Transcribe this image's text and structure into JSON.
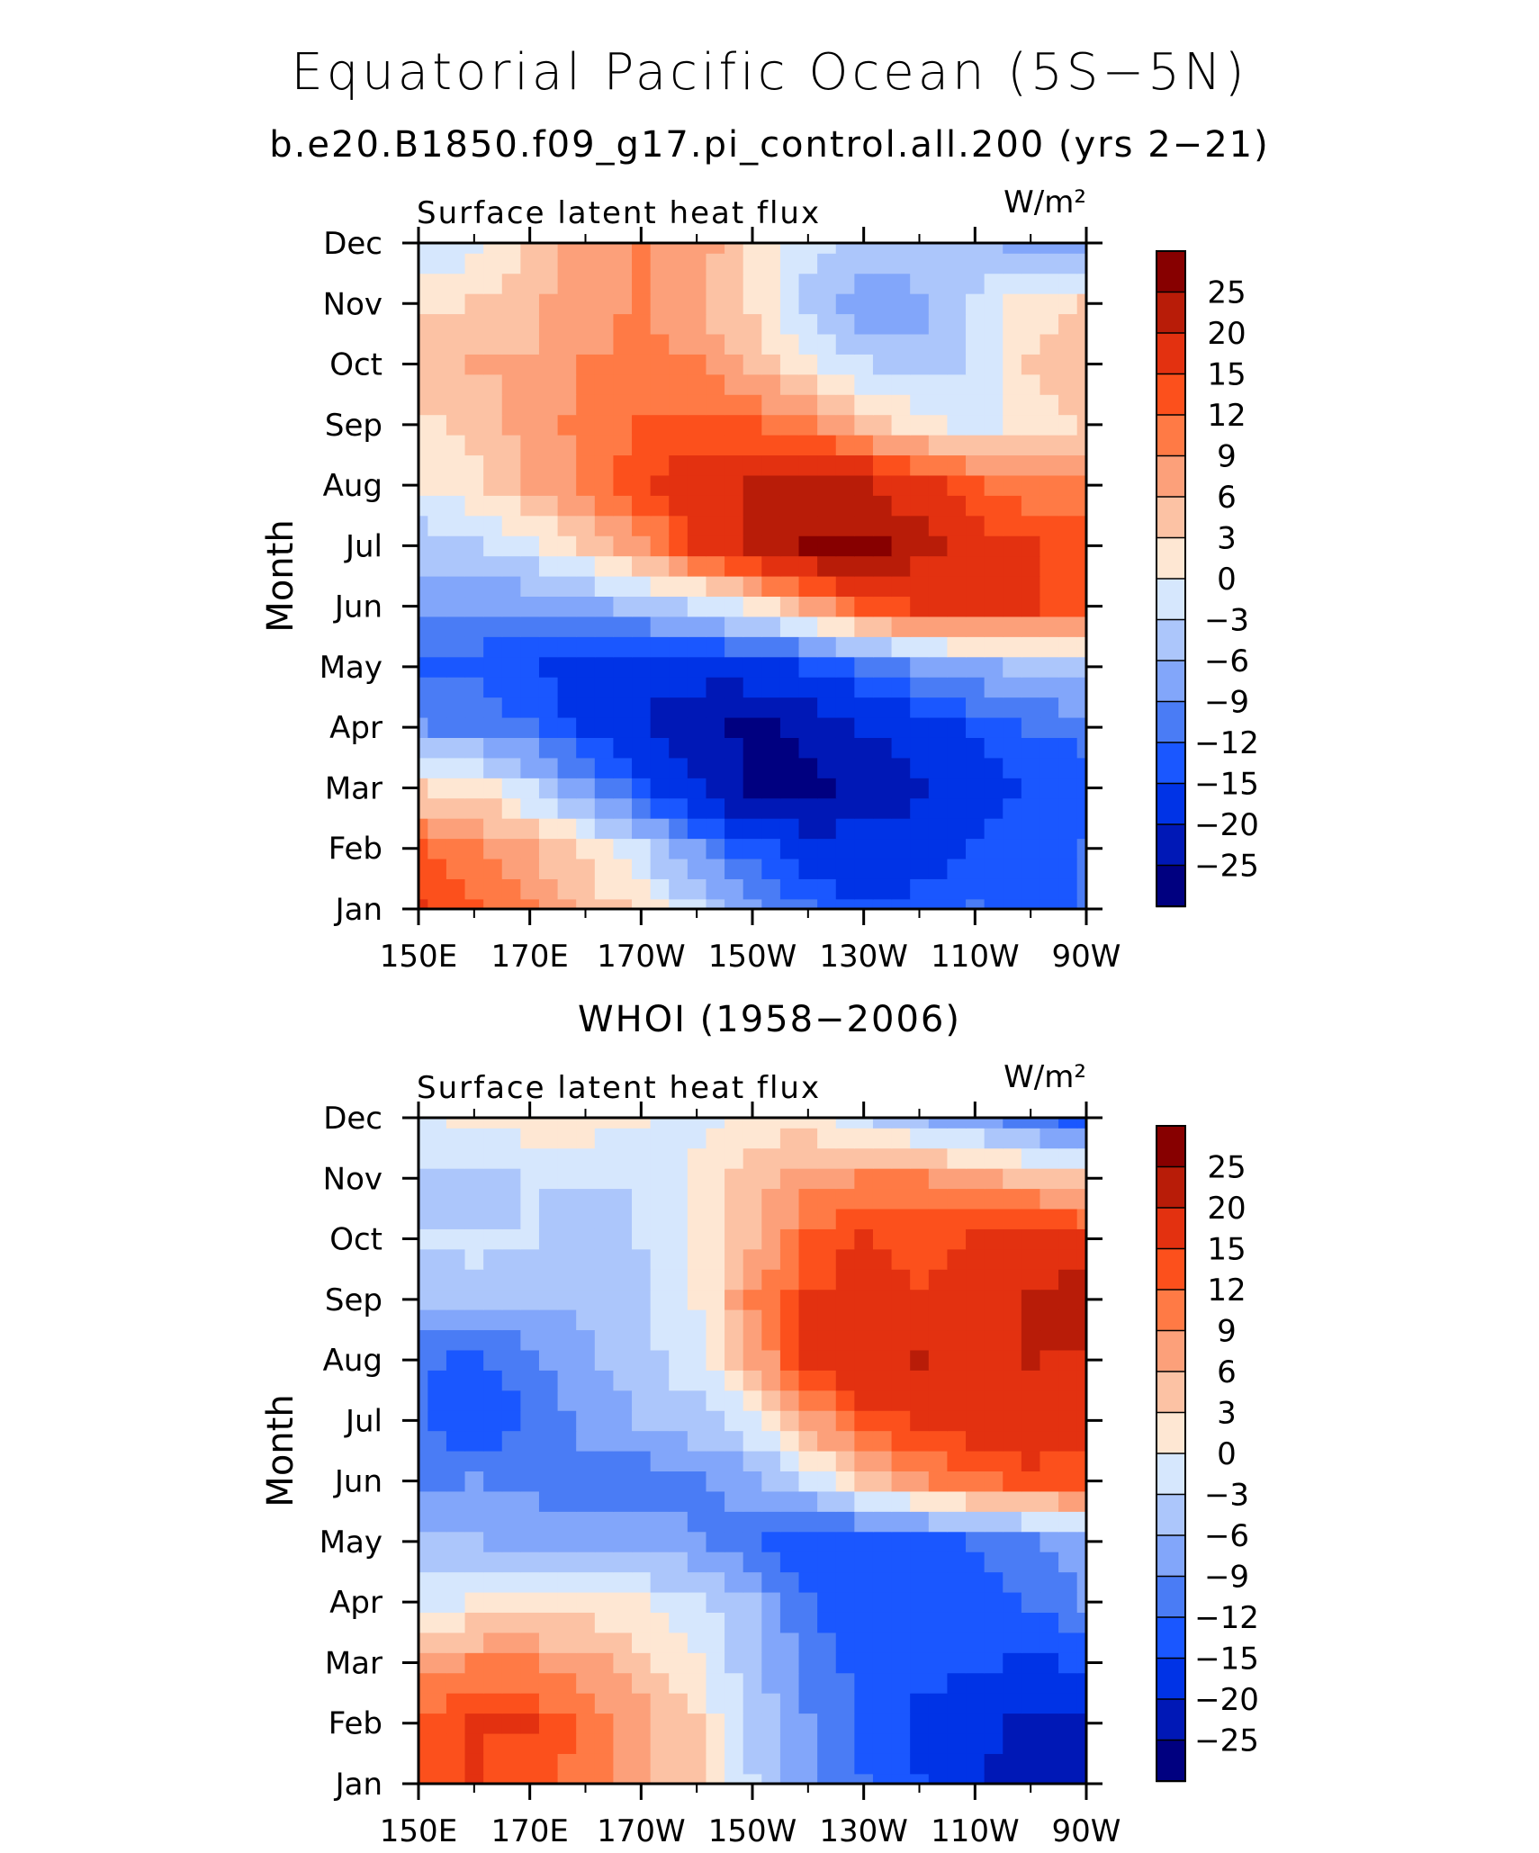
{
  "title": "Equatorial Pacific Ocean (5S−5N)",
  "subtitle": "b.e20.B1850.f09_g17.pi_control.all.200 (yrs 2−21)",
  "middle_title": "WHOI (1958−2006)",
  "colors": [
    "#000080",
    "#0018b6",
    "#0033e6",
    "#1a57ff",
    "#4a7cf5",
    "#82a6fa",
    "#acc6fb",
    "#d6e7fd",
    "#fee7d3",
    "#fcc2a4",
    "#fca07a",
    "#ff7a45",
    "#fc501c",
    "#e33110",
    "#b81c08",
    "#870000"
  ],
  "chart_data": [
    {
      "type": "heatmap",
      "name": "model",
      "left_label": "Surface latent heat flux",
      "right_label": "W/m²",
      "ylabel": "Month",
      "xticks": [
        "150E",
        "170E",
        "170W",
        "150W",
        "130W",
        "110W",
        "90W"
      ],
      "yticks": [
        "Jan",
        "Feb",
        "Mar",
        "Apr",
        "May",
        "Jun",
        "Jul",
        "Aug",
        "Sep",
        "Oct",
        "Nov",
        "Dec"
      ],
      "xlim": [
        150,
        270
      ],
      "colorbar_labels": [
        "25",
        "20",
        "15",
        "12",
        "9",
        "6",
        "3",
        "0",
        "−3",
        "−6",
        "−9",
        "−12",
        "−15",
        "−20",
        "−25"
      ],
      "levels": [
        -25,
        -20,
        -15,
        -12,
        -9,
        -6,
        -3,
        0,
        3,
        6,
        9,
        12,
        15,
        20,
        25
      ],
      "x_grid": [
        150,
        160,
        170,
        180,
        190,
        200,
        210,
        220,
        230,
        240,
        250,
        260,
        270
      ],
      "values": [
        [
          15,
          12,
          9,
          5,
          2,
          -3,
          -8,
          -12,
          -15,
          -14,
          -12,
          -13,
          -12
        ],
        [
          12,
          10,
          6,
          2,
          -3,
          -9,
          -14,
          -17,
          -18,
          -17,
          -15,
          -13,
          -12
        ],
        [
          3,
          2,
          -3,
          -8,
          -14,
          -20,
          -26,
          -27,
          -23,
          -21,
          -17,
          -15,
          -14
        ],
        [
          -9,
          -10,
          -12,
          -16,
          -20,
          -24,
          -26,
          -24,
          -20,
          -17,
          -14,
          -12,
          -11
        ],
        [
          -13,
          -13,
          -15,
          -17,
          -18,
          -18,
          -17,
          -15,
          -12,
          -9,
          -7,
          -5,
          -4
        ],
        [
          -8,
          -9,
          -8,
          -7,
          -5,
          -3,
          1,
          6,
          12,
          15,
          16,
          15,
          14
        ],
        [
          -5,
          -4,
          -1,
          3,
          8,
          15,
          20,
          26,
          27,
          22,
          17,
          15,
          14
        ],
        [
          0,
          2,
          6,
          10,
          14,
          18,
          20,
          22,
          20,
          17,
          13,
          10,
          9
        ],
        [
          2,
          4,
          7,
          10,
          12,
          13,
          12,
          9,
          5,
          1,
          -1,
          1,
          3
        ],
        [
          5,
          6,
          6,
          9,
          10,
          9,
          5,
          1,
          -3,
          -5,
          -3,
          3,
          5
        ],
        [
          2,
          3,
          5,
          8,
          9,
          6,
          2,
          -4,
          -9,
          -7,
          -2,
          2,
          3
        ],
        [
          -3,
          -1,
          3,
          8,
          9,
          8,
          2,
          -2,
          -4,
          -4,
          -5,
          -7,
          -8
        ]
      ]
    },
    {
      "type": "heatmap",
      "name": "observations",
      "left_label": "Surface latent heat flux",
      "right_label": "W/m²",
      "ylabel": "Month",
      "xticks": [
        "150E",
        "170E",
        "170W",
        "150W",
        "130W",
        "110W",
        "90W"
      ],
      "yticks": [
        "Jan",
        "Feb",
        "Mar",
        "Apr",
        "May",
        "Jun",
        "Jul",
        "Aug",
        "Sep",
        "Oct",
        "Nov",
        "Dec"
      ],
      "xlim": [
        150,
        270
      ],
      "colorbar_labels": [
        "25",
        "20",
        "15",
        "12",
        "9",
        "6",
        "3",
        "0",
        "−3",
        "−6",
        "−9",
        "−12",
        "−15",
        "−20",
        "−25"
      ],
      "levels": [
        -25,
        -20,
        -15,
        -12,
        -9,
        -6,
        -3,
        0,
        3,
        6,
        9,
        12,
        15,
        20,
        25
      ],
      "x_grid": [
        150,
        160,
        170,
        180,
        190,
        200,
        210,
        220,
        230,
        240,
        250,
        260,
        270
      ],
      "values": [
        [
          12,
          15,
          13,
          11,
          6,
          3,
          -3,
          -8,
          -12,
          -15,
          -20,
          -22,
          -25
        ],
        [
          12,
          15,
          15,
          11,
          7,
          3,
          -4,
          -9,
          -13,
          -16,
          -19,
          -21,
          -21
        ],
        [
          8,
          9,
          9,
          7,
          4,
          0,
          -5,
          -10,
          -13,
          -14,
          -14,
          -16,
          -14
        ],
        [
          -1,
          0,
          1,
          1,
          0,
          -2,
          -6,
          -12,
          -14,
          -13,
          -13,
          -12,
          -9
        ],
        [
          -6,
          -6,
          -7,
          -7,
          -7,
          -9,
          -12,
          -15,
          -15,
          -14,
          -12,
          -10,
          -7
        ],
        [
          -10,
          -9,
          -10,
          -11,
          -11,
          -10,
          -7,
          -2,
          4,
          8,
          11,
          13,
          13
        ],
        [
          -12,
          -15,
          -12,
          -8,
          -6,
          -4,
          -1,
          7,
          13,
          16,
          18,
          19,
          18
        ],
        [
          -11,
          -13,
          -10,
          -7,
          -4,
          -1,
          6,
          15,
          19,
          20,
          19,
          20,
          19
        ],
        [
          -5,
          -4,
          -6,
          -5,
          -4,
          0,
          9,
          15,
          18,
          15,
          18,
          20,
          23
        ],
        [
          -3,
          -2,
          -3,
          -4,
          -3,
          0,
          5,
          12,
          15,
          14,
          15,
          17,
          16
        ],
        [
          -4,
          -5,
          -3,
          -3,
          -3,
          1,
          4,
          8,
          9,
          9,
          7,
          5,
          3
        ],
        [
          -1,
          1,
          2,
          2,
          0,
          -1,
          2,
          1,
          -2,
          -5,
          -8,
          -10,
          -14
        ]
      ]
    }
  ]
}
